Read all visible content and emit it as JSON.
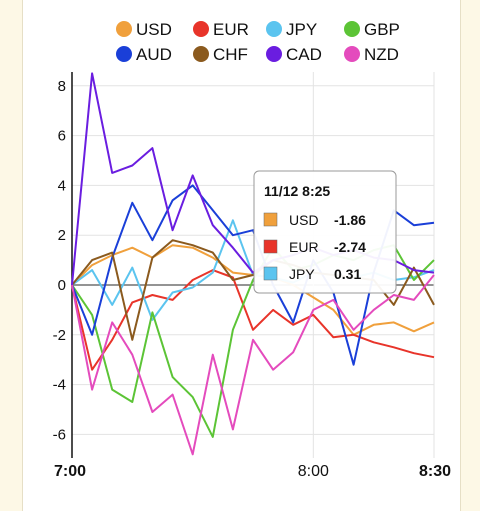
{
  "chart_data": {
    "type": "line",
    "title": "",
    "xlabel": "",
    "ylabel": "",
    "x_ticks": [
      "7:00",
      "8:00",
      "8:30"
    ],
    "x_start": "7:00",
    "x_end": "8:30",
    "y_ticks": [
      8,
      6,
      4,
      2,
      0,
      -2,
      -4,
      -6
    ],
    "ylim": [
      -6.8,
      8.6
    ],
    "grid": true,
    "legend": "top",
    "series": [
      {
        "name": "USD",
        "color": "#f0a03c",
        "times": [
          "7:00",
          "7:05",
          "7:10",
          "7:15",
          "7:20",
          "7:25",
          "7:30",
          "7:35",
          "7:40",
          "7:45",
          "7:50",
          "7:55",
          "8:00",
          "8:05",
          "8:10",
          "8:15",
          "8:20",
          "8:25",
          "8:30"
        ],
        "values": [
          0.0,
          0.8,
          1.2,
          1.5,
          1.1,
          1.6,
          1.5,
          1.1,
          0.5,
          0.4,
          0.3,
          0.0,
          -0.5,
          -1.0,
          -2.0,
          -1.6,
          -1.5,
          -1.86,
          -1.5
        ]
      },
      {
        "name": "EUR",
        "color": "#e8342a",
        "times": [
          "7:00",
          "7:05",
          "7:10",
          "7:15",
          "7:20",
          "7:25",
          "7:30",
          "7:35",
          "7:40",
          "7:45",
          "7:50",
          "7:55",
          "8:00",
          "8:05",
          "8:10",
          "8:15",
          "8:20",
          "8:25",
          "8:30"
        ],
        "values": [
          0.0,
          -3.4,
          -2.2,
          -0.7,
          -0.4,
          -0.6,
          0.2,
          0.6,
          0.3,
          -1.8,
          -1.0,
          -1.6,
          -1.2,
          -2.1,
          -2.0,
          -2.3,
          -2.5,
          -2.74,
          -2.9
        ]
      },
      {
        "name": "JPY",
        "color": "#5bc4ef",
        "times": [
          "7:00",
          "7:05",
          "7:10",
          "7:15",
          "7:20",
          "7:25",
          "7:30",
          "7:35",
          "7:40",
          "7:45",
          "7:50",
          "7:55",
          "8:00",
          "8:05",
          "8:10",
          "8:15",
          "8:20",
          "8:25",
          "8:30"
        ],
        "values": [
          0.0,
          0.6,
          -0.8,
          0.7,
          -1.4,
          -0.3,
          -0.1,
          0.5,
          2.6,
          0.4,
          0.3,
          0.1,
          0.5,
          0.4,
          0.3,
          0.5,
          0.2,
          0.31,
          0.6
        ]
      },
      {
        "name": "GBP",
        "color": "#5cc436",
        "times": [
          "7:00",
          "7:05",
          "7:10",
          "7:15",
          "7:20",
          "7:25",
          "7:30",
          "7:35",
          "7:40",
          "7:45",
          "7:50",
          "7:55",
          "8:00",
          "8:05",
          "8:10",
          "8:15",
          "8:20",
          "8:25",
          "8:30"
        ],
        "values": [
          0.0,
          -1.2,
          -4.2,
          -4.7,
          -1.1,
          -3.7,
          -4.5,
          -6.1,
          -1.8,
          0.2,
          1.5,
          0.6,
          0.8,
          1.2,
          1.0,
          1.4,
          1.6,
          0.2,
          1.0
        ]
      },
      {
        "name": "AUD",
        "color": "#1a3fd8",
        "times": [
          "7:00",
          "7:05",
          "7:10",
          "7:15",
          "7:20",
          "7:25",
          "7:30",
          "7:35",
          "7:40",
          "7:45",
          "7:50",
          "7:55",
          "8:00",
          "8:05",
          "8:10",
          "8:15",
          "8:20",
          "8:25",
          "8:30"
        ],
        "values": [
          0.0,
          -2.0,
          1.1,
          3.3,
          1.8,
          3.4,
          4.0,
          3.0,
          2.0,
          2.2,
          0.0,
          -1.5,
          1.0,
          -0.3,
          -3.2,
          0.5,
          3.0,
          2.4,
          2.5
        ]
      },
      {
        "name": "CHF",
        "color": "#8b5a1e",
        "times": [
          "7:00",
          "7:05",
          "7:10",
          "7:15",
          "7:20",
          "7:25",
          "7:30",
          "7:35",
          "7:40",
          "7:45",
          "7:50",
          "7:55",
          "8:00",
          "8:05",
          "8:10",
          "8:15",
          "8:20",
          "8:25",
          "8:30"
        ],
        "values": [
          0.0,
          1.0,
          1.3,
          -2.2,
          1.1,
          1.8,
          1.6,
          1.3,
          0.2,
          0.4,
          1.0,
          0.8,
          0.5,
          0.4,
          0.3,
          0.2,
          -0.8,
          0.7,
          -0.8
        ]
      },
      {
        "name": "CAD",
        "color": "#6a1de0",
        "times": [
          "7:00",
          "7:05",
          "7:10",
          "7:15",
          "7:20",
          "7:25",
          "7:30",
          "7:35",
          "7:40",
          "7:45",
          "7:50",
          "7:55",
          "8:00",
          "8:05",
          "8:10",
          "8:15",
          "8:20",
          "8:25",
          "8:30"
        ],
        "values": [
          0.0,
          8.5,
          4.5,
          4.8,
          5.5,
          2.2,
          4.4,
          2.4,
          1.5,
          0.5,
          1.0,
          1.2,
          1.5,
          1.2,
          1.4,
          1.1,
          1.0,
          0.6,
          0.5
        ]
      },
      {
        "name": "NZD",
        "color": "#e44bbd",
        "times": [
          "7:00",
          "7:05",
          "7:10",
          "7:15",
          "7:20",
          "7:25",
          "7:30",
          "7:35",
          "7:40",
          "7:45",
          "7:50",
          "7:55",
          "8:00",
          "8:05",
          "8:10",
          "8:15",
          "8:20",
          "8:25",
          "8:30"
        ],
        "values": [
          0.0,
          -4.2,
          -1.5,
          -2.8,
          -5.1,
          -4.4,
          -6.8,
          -2.8,
          -5.8,
          -2.2,
          -3.4,
          -2.7,
          -1.0,
          -0.6,
          -1.8,
          -1.0,
          -0.4,
          -0.6,
          0.4
        ]
      }
    ],
    "tooltip": {
      "title": "11/12 8:25",
      "entries": [
        {
          "name": "USD",
          "value": "-1.86",
          "color": "#f0a03c"
        },
        {
          "name": "EUR",
          "value": "-2.74",
          "color": "#e8342a"
        },
        {
          "name": "JPY",
          "value": "0.31",
          "color": "#5bc4ef"
        }
      ]
    }
  }
}
